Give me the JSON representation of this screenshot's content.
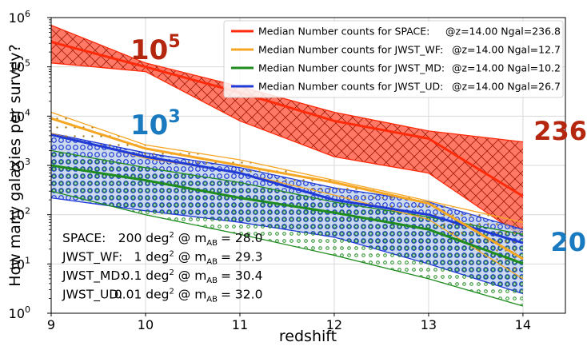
{
  "chart_data": {
    "type": "line",
    "title": "",
    "xlabel": "redshift",
    "ylabel": "How many galaxies per survey?",
    "xlim": [
      9,
      14.45
    ],
    "ylim": [
      1,
      1000000
    ],
    "yscale": "log",
    "xticks": [
      "9",
      "10",
      "11",
      "12",
      "13",
      "14"
    ],
    "yticks": [
      {
        "base": "10",
        "exp": "0",
        "value": 1
      },
      {
        "base": "10",
        "exp": "1",
        "value": 10
      },
      {
        "base": "10",
        "exp": "2",
        "value": 100
      },
      {
        "base": "10",
        "exp": "3",
        "value": 1000
      },
      {
        "base": "10",
        "exp": "4",
        "value": 10000
      },
      {
        "base": "10",
        "exp": "5",
        "value": 100000
      },
      {
        "base": "10",
        "exp": "6",
        "value": 1000000
      }
    ],
    "grid": true,
    "legend_position": "top-right",
    "series": [
      {
        "name": "SPACE",
        "legend_main": "Median Number counts for SPACE:",
        "legend_stat": "@z=14.00 Ngal=236.8",
        "color": "#ff2a0a",
        "band_fill": "#ff6a55",
        "hatch": "cross",
        "x": [
          9,
          10,
          11,
          12,
          13,
          14
        ],
        "median": [
          320000,
          100000,
          30000,
          8000,
          3500,
          236.8
        ],
        "upper": [
          700000,
          120000,
          40000,
          12000,
          5000,
          3000
        ],
        "lower": [
          120000,
          80000,
          8000,
          1500,
          700,
          35
        ]
      },
      {
        "name": "JWST_WF",
        "legend_main": "Median Number counts for JWST_WF:",
        "legend_stat": "@z=14.00 Ngal=12.7",
        "color": "#f5a623",
        "band_fill": "none",
        "hatch": "dots",
        "x": [
          9,
          10,
          11,
          12,
          13,
          14
        ],
        "median": [
          9000,
          2200,
          1000,
          450,
          170,
          12.7
        ],
        "upper": [
          12000,
          2600,
          1300,
          500,
          190,
          70
        ],
        "lower": [
          4500,
          1400,
          700,
          250,
          80,
          5
        ]
      },
      {
        "name": "JWST_MD",
        "legend_main": "Median Number counts for JWST_MD:",
        "legend_stat": "@z=14.00 Ngal=10.2",
        "color": "#1e8c1e",
        "band_fill": "none",
        "hatch": "smallcircles",
        "x": [
          9,
          10,
          11,
          12,
          13,
          14
        ],
        "median": [
          1000,
          500,
          220,
          110,
          50,
          10.2
        ],
        "upper": [
          2000,
          900,
          450,
          180,
          90,
          40
        ],
        "lower": [
          300,
          100,
          40,
          15,
          5,
          1.4
        ]
      },
      {
        "name": "JWST_UD",
        "legend_main": "Median Number counts for JWST_UD:",
        "legend_stat": "@z=14.00 Ngal=26.7",
        "color": "#1f3ad6",
        "band_fill": "#b9cde6",
        "hatch": "circles",
        "x": [
          9,
          10,
          11,
          12,
          13,
          14
        ],
        "median": [
          4200,
          1500,
          700,
          200,
          100,
          26.7
        ],
        "upper": [
          4500,
          1800,
          900,
          350,
          180,
          50
        ],
        "lower": [
          220,
          120,
          70,
          35,
          10,
          2.5
        ]
      }
    ],
    "annotations": [
      {
        "base": "10",
        "exp": "5",
        "color": "#b5260e"
      },
      {
        "base": "10",
        "exp": "3",
        "color": "#1a7ac0"
      },
      {
        "text": "236",
        "color": "#b5260e"
      },
      {
        "text": "20",
        "color": "#1a7ac0"
      }
    ],
    "survey_lines": [
      {
        "name": "SPACE:",
        "area": "200 deg",
        "sup": "2",
        "at": "@ m",
        "sub": "AB",
        "mag": "= 28.0"
      },
      {
        "name": "JWST_WF:",
        "area": "1 deg",
        "sup": "2",
        "at": "@ m",
        "sub": "AB",
        "mag": "= 29.3"
      },
      {
        "name": "JWST_MD:",
        "area": "0.1 deg",
        "sup": "2",
        "at": "@ m",
        "sub": "AB",
        "mag": "= 30.4"
      },
      {
        "name": "JWST_UD:",
        "area": "0.01 deg",
        "sup": "2",
        "at": "@ m",
        "sub": "AB",
        "mag": "= 32.0"
      }
    ]
  }
}
